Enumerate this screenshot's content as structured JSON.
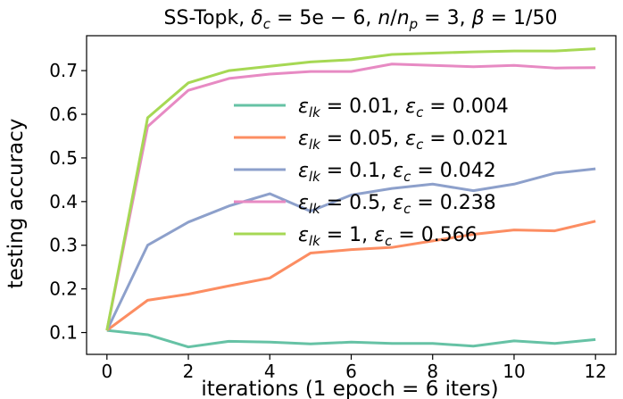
{
  "chart_data": {
    "type": "line",
    "title": "SS-Topk, δ_c = 5e − 6, n/n_p = 3, β = 1/50",
    "title_parts": {
      "prefix": "SS-Topk, ",
      "delta": "δ",
      "delta_sub": "c",
      "delta_val": " = 5e − 6, ",
      "n": "n",
      "slash": "/",
      "np_n": "n",
      "np_sub": "p",
      "n_val": " = 3, ",
      "beta": "β",
      "beta_val": " = 1/50"
    },
    "xlabel": "iterations (1 epoch = 6 iters)",
    "ylabel": "testing accuracy",
    "xlim": [
      -0.5,
      12.5
    ],
    "ylim": [
      0.05,
      0.78
    ],
    "xticks": [
      0,
      2,
      4,
      6,
      8,
      10,
      12
    ],
    "yticks": [
      0.1,
      0.2,
      0.3,
      0.4,
      0.5,
      0.6,
      0.7
    ],
    "grid": false,
    "legend_position": "center",
    "x": [
      0,
      1,
      2,
      3,
      4,
      5,
      6,
      7,
      8,
      9,
      10,
      11,
      12
    ],
    "series": [
      {
        "name": "ε_lk = 0.01, ε_c = 0.004",
        "label_parts": {
          "eps": "ε",
          "sub1": "lk",
          "mid": " = 0.01, ",
          "sub2": "c",
          "end": " = 0.004"
        },
        "color": "#66c2a5",
        "values": [
          0.105,
          0.095,
          0.067,
          0.08,
          0.078,
          0.074,
          0.078,
          0.075,
          0.075,
          0.069,
          0.081,
          0.075,
          0.084
        ]
      },
      {
        "name": "ε_lk = 0.05, ε_c = 0.021",
        "label_parts": {
          "eps": "ε",
          "sub1": "lk",
          "mid": " = 0.05, ",
          "sub2": "c",
          "end": " = 0.021"
        },
        "color": "#fc8d62",
        "values": [
          0.105,
          0.174,
          0.188,
          0.207,
          0.225,
          0.282,
          0.29,
          0.295,
          0.31,
          0.325,
          0.335,
          0.333,
          0.355
        ]
      },
      {
        "name": "ε_lk = 0.1, ε_c = 0.042",
        "label_parts": {
          "eps": "ε",
          "sub1": "lk",
          "mid": " = 0.1, ",
          "sub2": "c",
          "end": " = 0.042"
        },
        "color": "#8da0cb",
        "values": [
          0.105,
          0.3,
          0.353,
          0.39,
          0.418,
          0.378,
          0.415,
          0.43,
          0.44,
          0.425,
          0.44,
          0.465,
          0.475
        ]
      },
      {
        "name": "ε_lk = 0.5, ε_c = 0.238",
        "label_parts": {
          "eps": "ε",
          "sub1": "lk",
          "mid": " = 0.5, ",
          "sub2": "c",
          "end": " = 0.238"
        },
        "color": "#e78ac3",
        "values": [
          0.105,
          0.572,
          0.655,
          0.682,
          0.692,
          0.698,
          0.698,
          0.715,
          0.712,
          0.709,
          0.712,
          0.706,
          0.707
        ]
      },
      {
        "name": "ε_lk = 1, ε_c = 0.566",
        "label_parts": {
          "eps": "ε",
          "sub1": "lk",
          "mid": " = 1, ",
          "sub2": "c",
          "end": " = 0.566"
        },
        "color": "#a6d854",
        "values": [
          0.105,
          0.592,
          0.672,
          0.7,
          0.71,
          0.72,
          0.725,
          0.737,
          0.74,
          0.743,
          0.745,
          0.745,
          0.75
        ]
      }
    ]
  }
}
